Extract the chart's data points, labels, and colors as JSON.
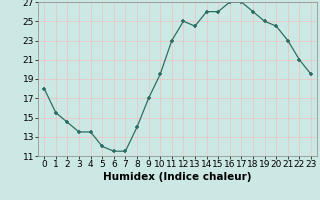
{
  "x": [
    0,
    1,
    2,
    3,
    4,
    5,
    6,
    7,
    8,
    9,
    10,
    11,
    12,
    13,
    14,
    15,
    16,
    17,
    18,
    19,
    20,
    21,
    22,
    23
  ],
  "y": [
    18.0,
    15.5,
    14.5,
    13.5,
    13.5,
    12.0,
    11.5,
    11.5,
    14.0,
    17.0,
    19.5,
    23.0,
    25.0,
    24.5,
    26.0,
    26.0,
    27.0,
    27.0,
    26.0,
    25.0,
    24.5,
    23.0,
    21.0,
    19.5
  ],
  "xlabel": "Humidex (Indice chaleur)",
  "ylim": [
    11,
    27
  ],
  "yticks": [
    11,
    13,
    15,
    17,
    19,
    21,
    23,
    25,
    27
  ],
  "xticks": [
    0,
    1,
    2,
    3,
    4,
    5,
    6,
    7,
    8,
    9,
    10,
    11,
    12,
    13,
    14,
    15,
    16,
    17,
    18,
    19,
    20,
    21,
    22,
    23
  ],
  "line_color": "#2d6e63",
  "marker_color": "#2d6e63",
  "bg_color": "#cce8e4",
  "grid_color": "#e8c8c8",
  "xlabel_fontsize": 7.5,
  "tick_fontsize": 6.5
}
